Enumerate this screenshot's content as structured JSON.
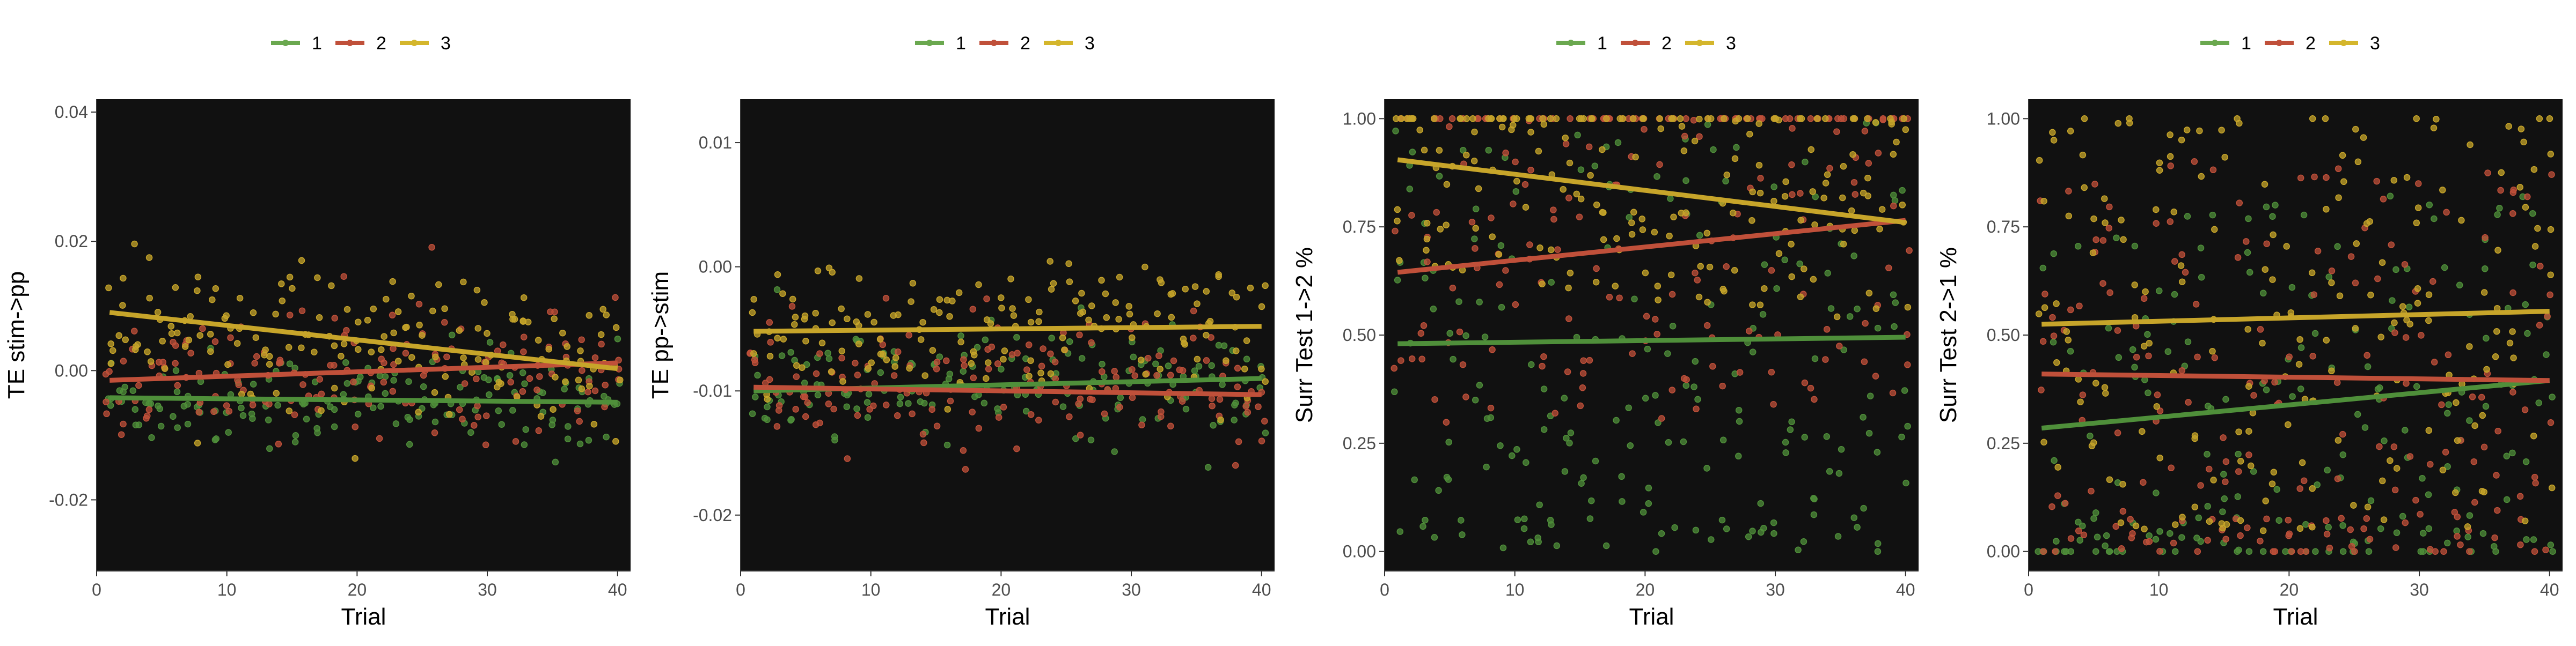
{
  "legend": {
    "items": [
      {
        "label": "1",
        "color": "#6aa84f"
      },
      {
        "label": "2",
        "color": "#c0503a"
      },
      {
        "label": "3",
        "color": "#d4b62c"
      }
    ]
  },
  "chart_data": [
    {
      "type": "scatter",
      "xlabel": "Trial",
      "ylabel": "TE stim->pp",
      "xlim": [
        0,
        41
      ],
      "ylim": [
        -0.031,
        0.042
      ],
      "xticks": [
        0,
        10,
        20,
        30,
        40
      ],
      "yticks": [
        -0.02,
        0.0,
        0.02,
        0.04
      ],
      "ytick_labels": [
        "-0.02",
        "0.00",
        "0.02",
        "0.04"
      ],
      "legend_placement": "top",
      "series": [
        {
          "name": "1",
          "color": "#4f8f3a",
          "trend": {
            "x": [
              1,
              40
            ],
            "y": [
              -0.0042,
              -0.0049
            ]
          },
          "point_center": -0.004,
          "point_spread": 0.007
        },
        {
          "name": "2",
          "color": "#c0503a",
          "trend": {
            "x": [
              1,
              40
            ],
            "y": [
              -0.0015,
              0.0012
            ]
          },
          "point_center": 0.0,
          "point_spread": 0.009
        },
        {
          "name": "3",
          "color": "#c7a52a",
          "trend": {
            "x": [
              1,
              40
            ],
            "y": [
              0.009,
              0.0003
            ]
          },
          "point_center": 0.005,
          "point_spread": 0.01
        }
      ]
    },
    {
      "type": "scatter",
      "xlabel": "Trial",
      "ylabel": "TE pp->stim",
      "xlim": [
        0,
        41
      ],
      "ylim": [
        -0.0245,
        0.0135
      ],
      "xticks": [
        0,
        10,
        20,
        30,
        40
      ],
      "yticks": [
        -0.02,
        -0.01,
        0.0,
        0.01
      ],
      "ytick_labels": [
        "-0.02",
        "-0.01",
        "0.00",
        "0.01"
      ],
      "legend_placement": "top",
      "series": [
        {
          "name": "1",
          "color": "#4f8f3a",
          "trend": {
            "x": [
              1,
              40
            ],
            "y": [
              -0.01,
              -0.009
            ]
          },
          "point_center": -0.0095,
          "point_spread": 0.0045
        },
        {
          "name": "2",
          "color": "#c0503a",
          "trend": {
            "x": [
              1,
              40
            ],
            "y": [
              -0.0097,
              -0.0103
            ]
          },
          "point_center": -0.01,
          "point_spread": 0.005
        },
        {
          "name": "3",
          "color": "#c7a52a",
          "trend": {
            "x": [
              1,
              40
            ],
            "y": [
              -0.0052,
              -0.0048
            ]
          },
          "point_center": -0.005,
          "point_spread": 0.0055
        }
      ]
    },
    {
      "type": "scatter",
      "xlabel": "Trial",
      "ylabel": "Surr Test 1->2 %",
      "xlim": [
        0,
        41
      ],
      "ylim": [
        -0.045,
        1.045
      ],
      "xticks": [
        0,
        10,
        20,
        30,
        40
      ],
      "yticks": [
        0.0,
        0.25,
        0.5,
        0.75,
        1.0
      ],
      "ytick_labels": [
        "0.00",
        "0.25",
        "0.50",
        "0.75",
        "1.00"
      ],
      "legend_placement": "top",
      "series": [
        {
          "name": "1",
          "color": "#4f8f3a",
          "trend": {
            "x": [
              1,
              40
            ],
            "y": [
              0.48,
              0.495
            ]
          },
          "point_center": 0.48,
          "point_spread": 0.5
        },
        {
          "name": "2",
          "color": "#c0503a",
          "trend": {
            "x": [
              1,
              40
            ],
            "y": [
              0.645,
              0.765
            ]
          },
          "point_center": 0.7,
          "point_spread": 0.4
        },
        {
          "name": "3",
          "color": "#c7a52a",
          "trend": {
            "x": [
              1,
              40
            ],
            "y": [
              0.905,
              0.76
            ]
          },
          "point_center": 0.88,
          "point_spread": 0.25
        }
      ]
    },
    {
      "type": "scatter",
      "xlabel": "Trial",
      "ylabel": "Surr Test 2->1 %",
      "xlim": [
        0,
        41
      ],
      "ylim": [
        -0.045,
        1.045
      ],
      "xticks": [
        0,
        10,
        20,
        30,
        40
      ],
      "yticks": [
        0.0,
        0.25,
        0.5,
        0.75,
        1.0
      ],
      "ytick_labels": [
        "0.00",
        "0.25",
        "0.50",
        "0.75",
        "1.00"
      ],
      "legend_placement": "top",
      "series": [
        {
          "name": "1",
          "color": "#4f8f3a",
          "trend": {
            "x": [
              1,
              40
            ],
            "y": [
              0.285,
              0.395
            ]
          },
          "point_center": 0.34,
          "point_spread": 0.5
        },
        {
          "name": "2",
          "color": "#c0503a",
          "trend": {
            "x": [
              1,
              40
            ],
            "y": [
              0.41,
              0.395
            ]
          },
          "point_center": 0.4,
          "point_spread": 0.5
        },
        {
          "name": "3",
          "color": "#c7a52a",
          "trend": {
            "x": [
              1,
              40
            ],
            "y": [
              0.525,
              0.555
            ]
          },
          "point_center": 0.54,
          "point_spread": 0.5
        }
      ]
    }
  ]
}
